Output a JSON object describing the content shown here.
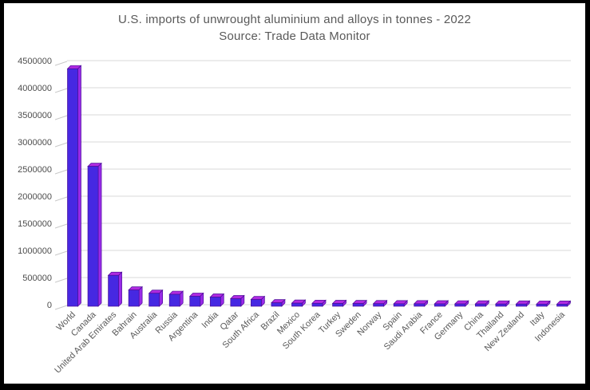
{
  "frame": {
    "background": "#ffffff",
    "border_color": "#000000"
  },
  "chart": {
    "title": "U.S. imports of unwrought aluminium and alloys in tonnes - 2022",
    "subtitle": "Source: Trade Data Monitor"
  },
  "chart_data": {
    "type": "bar",
    "style": "3d-column",
    "title": "U.S. imports of unwrought aluminium and alloys in tonnes - 2022",
    "subtitle": "Source: Trade Data Monitor",
    "categories": [
      "World",
      "Canada",
      "United Arab Emirates",
      "Bahrain",
      "Australia",
      "Russia",
      "Argentina",
      "India",
      "Qatar",
      "South Africa",
      "Brazil",
      "Mexico",
      "South Korea",
      "Turkey",
      "Sweden",
      "Norway",
      "Spain",
      "Saudi Arabia",
      "France",
      "Germany",
      "China",
      "Thailand",
      "New Zealand",
      "Italy",
      "Indonesia"
    ],
    "values": [
      4350000,
      2550000,
      540000,
      270000,
      210000,
      190000,
      155000,
      140000,
      110000,
      95000,
      35000,
      28000,
      25000,
      22000,
      20000,
      18000,
      17000,
      16000,
      15000,
      14000,
      13000,
      12000,
      11000,
      10000,
      9000
    ],
    "xlabel": "",
    "ylabel": "",
    "ylim": [
      0,
      4500000
    ],
    "ytick_interval": 500000,
    "ytick_labels": [
      "0",
      "500000",
      "1000000",
      "1500000",
      "2000000",
      "2500000",
      "3000000",
      "3500000",
      "4000000",
      "4500000"
    ],
    "grid": true,
    "legend": false,
    "x_label_rotation_deg": -45,
    "colors": {
      "bar_front": "#4628e2",
      "bar_side": "#9a2ae8",
      "bar_top": "#b02ae0",
      "bar_outline": "#4b0d99",
      "gridline": "#d9d9d9",
      "tick": "#c9c9c9",
      "axis_text": "#595959",
      "title_text": "#595959"
    }
  }
}
